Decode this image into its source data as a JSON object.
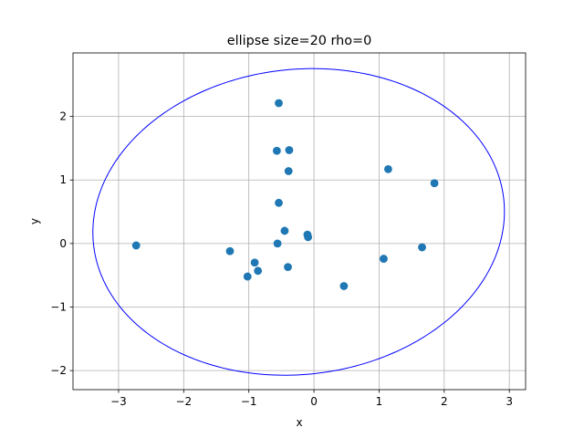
{
  "chart_data": {
    "type": "scatter",
    "title": "ellipse size=20 rho=0",
    "xlabel": "x",
    "ylabel": "y",
    "xlim": [
      -3.7,
      3.25
    ],
    "ylim": [
      -2.3,
      3.0
    ],
    "xticks": [
      -3,
      -2,
      -1,
      0,
      1,
      2,
      3
    ],
    "yticks": [
      -2,
      -1,
      0,
      1,
      2
    ],
    "xtick_labels": [
      "−3",
      "−2",
      "−1",
      "0",
      "1",
      "2",
      "3"
    ],
    "ytick_labels": [
      "−2",
      "−1",
      "0",
      "1",
      "2"
    ],
    "grid": true,
    "marker_color": "#1f77b4",
    "points": [
      {
        "x": -2.73,
        "y": -0.03
      },
      {
        "x": -1.29,
        "y": -0.12
      },
      {
        "x": -1.02,
        "y": -0.52
      },
      {
        "x": -0.91,
        "y": -0.3
      },
      {
        "x": -0.86,
        "y": -0.43
      },
      {
        "x": -0.54,
        "y": 2.21
      },
      {
        "x": -0.57,
        "y": 1.46
      },
      {
        "x": -0.38,
        "y": 1.47
      },
      {
        "x": -0.39,
        "y": 1.14
      },
      {
        "x": -0.54,
        "y": 0.64
      },
      {
        "x": -0.45,
        "y": 0.2
      },
      {
        "x": -0.56,
        "y": 0.0
      },
      {
        "x": -0.4,
        "y": -0.37
      },
      {
        "x": -0.1,
        "y": 0.14
      },
      {
        "x": -0.09,
        "y": 0.1
      },
      {
        "x": 0.46,
        "y": -0.67
      },
      {
        "x": 1.07,
        "y": -0.24
      },
      {
        "x": 1.14,
        "y": 1.17
      },
      {
        "x": 1.66,
        "y": -0.06
      },
      {
        "x": 1.85,
        "y": 0.95
      }
    ],
    "ellipse": {
      "color": "#0000ff",
      "center": [
        -0.235,
        0.34
      ],
      "semi_axes": [
        3.17,
        2.4
      ],
      "angle_deg": 7
    }
  }
}
